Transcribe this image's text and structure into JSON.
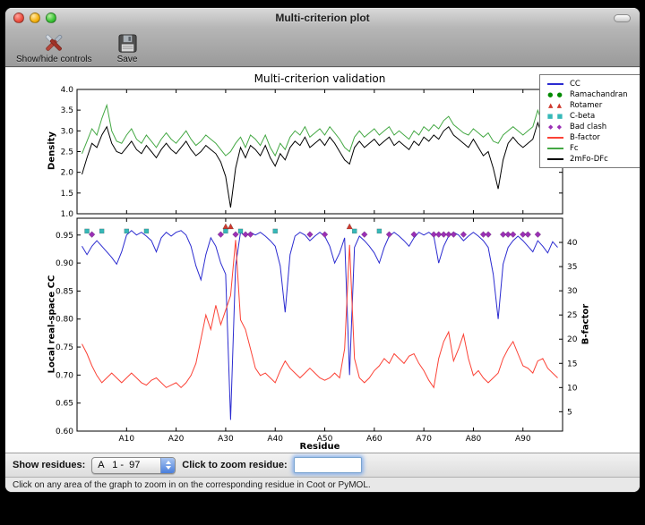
{
  "window": {
    "title": "Multi-criterion plot"
  },
  "toolbar": {
    "buttons": [
      {
        "label": "Show/hide controls",
        "icon": "crossed-tools-icon"
      },
      {
        "label": "Save",
        "icon": "save-icon"
      }
    ]
  },
  "figure": {
    "title": "Multi-criterion validation"
  },
  "chart_data": [
    {
      "type": "line",
      "title": "Multi-criterion validation",
      "ylabel": "Density",
      "ylim": [
        1.0,
        4.0
      ],
      "yticks": [
        1.0,
        1.5,
        2.0,
        2.5,
        3.0,
        3.5,
        4.0
      ],
      "xlim": [
        0,
        98
      ],
      "x_note": "residues A1-A97, one value per residue",
      "grid": false,
      "series": [
        {
          "name": "Fc",
          "color": "#44a844",
          "values": [
            2.45,
            2.75,
            3.05,
            2.9,
            3.3,
            3.62,
            3.0,
            2.75,
            2.7,
            2.9,
            3.05,
            2.8,
            2.7,
            2.9,
            2.75,
            2.6,
            2.8,
            2.95,
            2.8,
            2.7,
            2.85,
            3.0,
            2.8,
            2.65,
            2.75,
            2.9,
            2.8,
            2.7,
            2.55,
            2.4,
            2.5,
            2.7,
            2.85,
            2.6,
            2.9,
            2.8,
            2.65,
            2.9,
            2.6,
            2.4,
            2.7,
            2.55,
            2.85,
            3.0,
            2.9,
            3.1,
            2.85,
            2.95,
            3.05,
            2.9,
            3.1,
            2.95,
            2.8,
            2.6,
            2.5,
            2.85,
            3.0,
            2.85,
            2.95,
            3.05,
            2.9,
            3.0,
            3.1,
            2.9,
            3.0,
            2.9,
            2.8,
            3.0,
            2.9,
            3.1,
            3.0,
            3.15,
            3.05,
            3.25,
            3.35,
            3.15,
            3.05,
            2.95,
            2.9,
            3.05,
            2.95,
            2.85,
            2.95,
            2.75,
            2.7,
            2.9,
            3.0,
            3.1,
            3.0,
            2.9,
            3.0,
            3.1,
            3.5,
            3.15,
            2.6,
            3.4,
            3.3
          ]
        },
        {
          "name": "2mFo-DFc",
          "color": "#000000",
          "values": [
            1.95,
            2.35,
            2.7,
            2.6,
            2.9,
            3.1,
            2.7,
            2.5,
            2.45,
            2.6,
            2.75,
            2.55,
            2.45,
            2.65,
            2.5,
            2.35,
            2.55,
            2.7,
            2.55,
            2.45,
            2.6,
            2.75,
            2.55,
            2.4,
            2.5,
            2.65,
            2.55,
            2.45,
            2.25,
            1.9,
            1.15,
            2.1,
            2.6,
            2.35,
            2.65,
            2.55,
            2.4,
            2.65,
            2.35,
            2.15,
            2.45,
            2.3,
            2.6,
            2.75,
            2.65,
            2.85,
            2.6,
            2.7,
            2.8,
            2.65,
            2.85,
            2.7,
            2.5,
            2.3,
            2.2,
            2.6,
            2.75,
            2.6,
            2.7,
            2.8,
            2.65,
            2.75,
            2.85,
            2.65,
            2.75,
            2.65,
            2.55,
            2.75,
            2.65,
            2.85,
            2.75,
            2.9,
            2.8,
            3.0,
            3.1,
            2.9,
            2.8,
            2.7,
            2.6,
            2.8,
            2.6,
            2.4,
            2.5,
            2.1,
            1.6,
            2.3,
            2.7,
            2.85,
            2.7,
            2.6,
            2.7,
            2.8,
            3.2,
            2.85,
            2.3,
            3.1,
            3.0
          ]
        }
      ]
    },
    {
      "type": "line",
      "xlabel": "Residue",
      "ylabel_left": "Local real-space CC",
      "ylabel_right": "B-factor",
      "ylim_left": [
        0.6,
        0.98
      ],
      "ylim_right": [
        1,
        45
      ],
      "yticks_left": [
        0.6,
        0.65,
        0.7,
        0.75,
        0.8,
        0.85,
        0.9,
        0.95
      ],
      "yticks_right": [
        5,
        10,
        15,
        20,
        25,
        30,
        35,
        40
      ],
      "xlim": [
        0,
        98
      ],
      "xticks": [
        {
          "label": "A10",
          "residue": 10
        },
        {
          "label": "A20",
          "residue": 20
        },
        {
          "label": "A30",
          "residue": 30
        },
        {
          "label": "A40",
          "residue": 40
        },
        {
          "label": "A50",
          "residue": 50
        },
        {
          "label": "A60",
          "residue": 60
        },
        {
          "label": "A70",
          "residue": 70
        },
        {
          "label": "A80",
          "residue": 80
        },
        {
          "label": "A90",
          "residue": 90
        }
      ],
      "grid": false,
      "series": [
        {
          "name": "CC",
          "axis": "left",
          "color": "#2b2bd0",
          "values": [
            0.93,
            0.915,
            0.93,
            0.94,
            0.93,
            0.92,
            0.91,
            0.898,
            0.92,
            0.95,
            0.958,
            0.95,
            0.955,
            0.948,
            0.94,
            0.92,
            0.945,
            0.955,
            0.948,
            0.955,
            0.958,
            0.95,
            0.93,
            0.895,
            0.87,
            0.915,
            0.945,
            0.93,
            0.9,
            0.88,
            0.62,
            0.895,
            0.955,
            0.948,
            0.955,
            0.95,
            0.955,
            0.948,
            0.94,
            0.93,
            0.895,
            0.812,
            0.915,
            0.948,
            0.955,
            0.95,
            0.94,
            0.948,
            0.955,
            0.948,
            0.93,
            0.9,
            0.918,
            0.945,
            0.7,
            0.928,
            0.948,
            0.94,
            0.93,
            0.918,
            0.9,
            0.928,
            0.948,
            0.955,
            0.948,
            0.94,
            0.93,
            0.945,
            0.955,
            0.95,
            0.955,
            0.948,
            0.9,
            0.93,
            0.948,
            0.955,
            0.95,
            0.94,
            0.948,
            0.955,
            0.948,
            0.94,
            0.928,
            0.88,
            0.8,
            0.898,
            0.928,
            0.94,
            0.948,
            0.94,
            0.93,
            0.92,
            0.94,
            0.93,
            0.918,
            0.938,
            0.928
          ]
        },
        {
          "name": "B-factor",
          "axis": "right",
          "color": "#fb4236",
          "values": [
            19,
            17,
            14.5,
            12.5,
            11,
            12,
            13,
            12,
            11,
            12,
            13,
            12,
            11,
            10.5,
            11.5,
            12,
            11,
            10,
            10.5,
            11,
            10,
            11,
            12.5,
            15,
            20,
            25,
            22,
            27,
            23,
            26,
            29,
            40.5,
            24,
            22,
            18,
            14,
            12.5,
            13,
            12,
            11,
            13.5,
            15.5,
            14,
            13,
            12,
            13,
            14,
            13,
            12,
            11.5,
            12,
            13,
            12,
            18,
            39.5,
            16,
            12,
            11,
            12,
            13.5,
            14.5,
            16,
            15,
            17,
            16,
            15,
            16.5,
            17,
            15,
            13.5,
            11.5,
            10,
            16,
            19.5,
            21.5,
            15.5,
            18,
            21,
            16,
            12.5,
            13.5,
            12,
            11,
            12,
            13,
            16,
            18,
            19.5,
            17,
            14.5,
            14,
            13,
            15.5,
            16,
            14,
            13,
            12
          ]
        }
      ],
      "outlier_markers": [
        {
          "name": "Ramachandran",
          "shape": "circle",
          "color": "#008a00",
          "y": 0.972,
          "residues": []
        },
        {
          "name": "Rotamer",
          "shape": "triangle",
          "color": "#cf3a2e",
          "y": 0.965,
          "residues": [
            30,
            31,
            55
          ]
        },
        {
          "name": "C-beta",
          "shape": "square",
          "color": "#35b8b8",
          "y": 0.957,
          "residues": [
            2,
            5,
            10,
            14,
            30,
            33,
            40,
            56,
            61
          ]
        },
        {
          "name": "Bad clash",
          "shape": "diamond",
          "color": "#9b30b5",
          "y": 0.951,
          "residues": [
            3,
            29,
            32,
            34,
            35,
            47,
            50,
            58,
            63,
            68,
            72,
            73,
            74,
            75,
            76,
            78,
            82,
            83,
            86,
            87,
            88,
            90,
            91,
            93
          ]
        }
      ]
    }
  ],
  "legend": {
    "position": "upper right, outside plot",
    "items": [
      {
        "label": "CC",
        "swatch": "line",
        "color": "#2b2bd0"
      },
      {
        "label": "Ramachandran",
        "swatch": "markers",
        "shape": "circle",
        "color": "#008a00"
      },
      {
        "label": "Rotamer",
        "swatch": "markers",
        "shape": "triangle",
        "color": "#cf3a2e"
      },
      {
        "label": "C-beta",
        "swatch": "markers",
        "shape": "square",
        "color": "#35b8b8"
      },
      {
        "label": "Bad clash",
        "swatch": "markers",
        "shape": "diamond",
        "color": "#9b30b5"
      },
      {
        "label": "B-factor",
        "swatch": "line",
        "color": "#fb4236"
      },
      {
        "label": "Fc",
        "swatch": "line",
        "color": "#44a844"
      },
      {
        "label": "2mFo-DFc",
        "swatch": "line",
        "color": "#000000"
      }
    ]
  },
  "controls": {
    "show_residues_label": "Show residues:",
    "residue_range_value": "A   1 -  97",
    "zoom_label": "Click to zoom residue:",
    "zoom_input_value": ""
  },
  "status_bar": {
    "text": "Click on any area of the graph to zoom in on the corresponding residue in Coot or PyMOL."
  }
}
